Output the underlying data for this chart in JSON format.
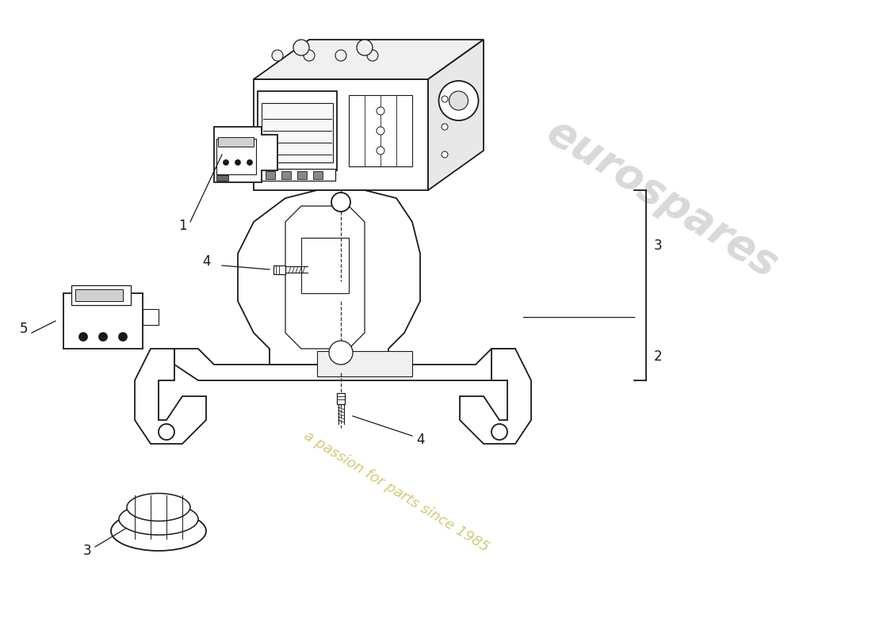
{
  "bg_color": "#ffffff",
  "line_color": "#1a1a1a",
  "watermark_color2": "#c8b840",
  "watermark_text1": "eurospares",
  "watermark_text2": "a passion for parts since 1985",
  "figsize": [
    11.0,
    8.0
  ],
  "dpi": 100
}
